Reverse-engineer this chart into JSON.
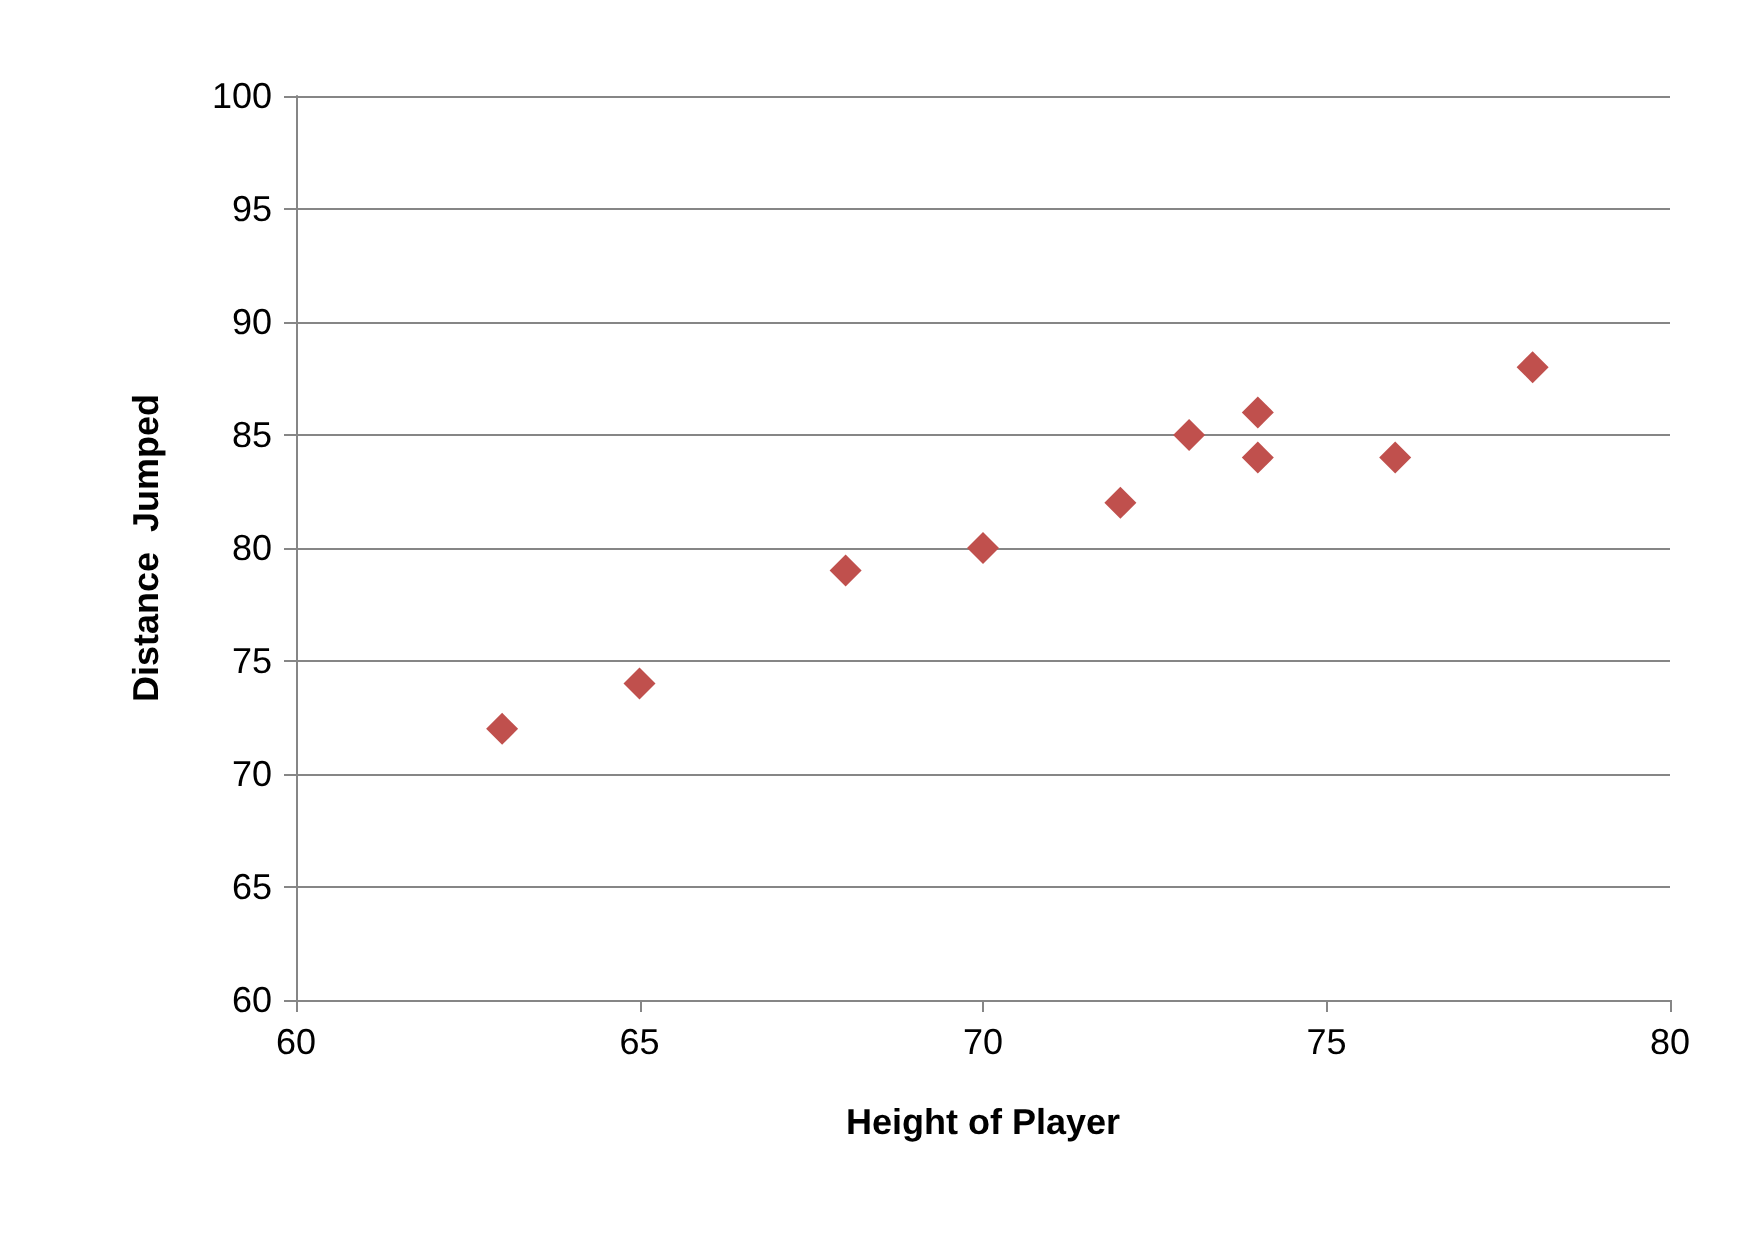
{
  "chart_data": {
    "type": "scatter",
    "xlabel": "Height of Player",
    "ylabel": "Distance  Jumped",
    "x": [
      63,
      65,
      68,
      70,
      72,
      73,
      74,
      74,
      76,
      78
    ],
    "values": [
      72,
      74,
      79,
      80,
      82,
      85,
      86,
      84,
      84,
      88
    ],
    "color": "#c0504d",
    "marker": "diamond",
    "xlim": [
      60,
      80
    ],
    "xticks": [
      60,
      65,
      70,
      75,
      80
    ],
    "ylim": [
      60,
      100
    ],
    "yticks": [
      60,
      65,
      70,
      75,
      80,
      85,
      90,
      95,
      100
    ],
    "grid": "y"
  }
}
